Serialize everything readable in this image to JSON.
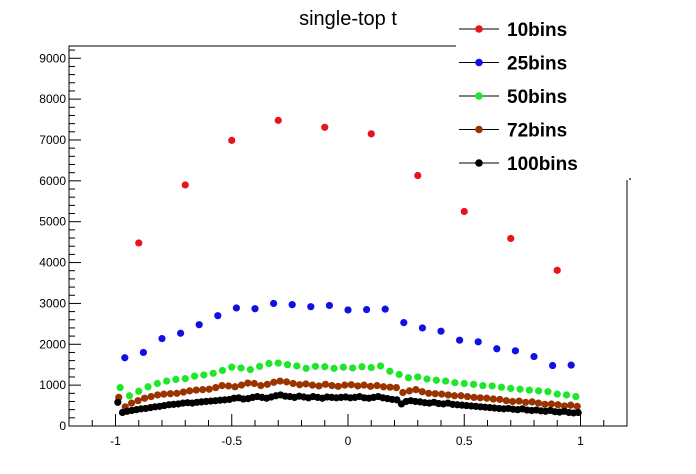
{
  "chart_data": {
    "type": "scatter",
    "title": "single-top t",
    "xlabel": "",
    "ylabel": "",
    "xlim": [
      -1.2,
      1.2
    ],
    "ylim": [
      0,
      9300
    ],
    "x_ticks": [
      -1,
      -0.5,
      0,
      0.5,
      1
    ],
    "y_ticks": [
      0,
      1000,
      2000,
      3000,
      4000,
      5000,
      6000,
      7000,
      8000,
      9000
    ],
    "grid": false,
    "legend_position": "top-right",
    "series": [
      {
        "name": "10bins",
        "color": "#e8141b",
        "x": [
          -0.9,
          -0.7,
          -0.5,
          -0.3,
          -0.1,
          0.1,
          0.3,
          0.5,
          0.7,
          0.9
        ],
        "y": [
          4480,
          5900,
          6990,
          7480,
          7310,
          7150,
          6130,
          5250,
          4590,
          3810
        ]
      },
      {
        "name": "25bins",
        "color": "#1010e6",
        "x": [
          -0.96,
          -0.88,
          -0.8,
          -0.72,
          -0.64,
          -0.56,
          -0.48,
          -0.4,
          -0.32,
          -0.24,
          -0.16,
          -0.08,
          0.0,
          0.08,
          0.16,
          0.24,
          0.32,
          0.4,
          0.48,
          0.56,
          0.64,
          0.72,
          0.8,
          0.88,
          0.96
        ],
        "y": [
          1670,
          1800,
          2140,
          2270,
          2480,
          2700,
          2890,
          2870,
          3000,
          2970,
          2920,
          2950,
          2840,
          2850,
          2860,
          2530,
          2400,
          2320,
          2100,
          2060,
          1890,
          1840,
          1700,
          1480,
          1490
        ]
      },
      {
        "name": "50bins",
        "color": "#1ee62a",
        "x": [
          -0.98,
          -0.94,
          -0.9,
          -0.86,
          -0.82,
          -0.78,
          -0.74,
          -0.7,
          -0.66,
          -0.62,
          -0.58,
          -0.54,
          -0.5,
          -0.46,
          -0.42,
          -0.38,
          -0.34,
          -0.3,
          -0.26,
          -0.22,
          -0.18,
          -0.14,
          -0.1,
          -0.06,
          -0.02,
          0.02,
          0.06,
          0.1,
          0.14,
          0.18,
          0.22,
          0.26,
          0.3,
          0.34,
          0.38,
          0.42,
          0.46,
          0.5,
          0.54,
          0.58,
          0.62,
          0.66,
          0.7,
          0.74,
          0.78,
          0.82,
          0.86,
          0.9,
          0.94,
          0.98
        ],
        "y": [
          940,
          740,
          850,
          960,
          1040,
          1100,
          1140,
          1160,
          1220,
          1250,
          1290,
          1360,
          1440,
          1420,
          1380,
          1460,
          1530,
          1540,
          1500,
          1470,
          1410,
          1460,
          1450,
          1410,
          1440,
          1420,
          1450,
          1430,
          1470,
          1340,
          1260,
          1180,
          1200,
          1150,
          1120,
          1100,
          1060,
          1040,
          1020,
          990,
          980,
          950,
          920,
          900,
          880,
          860,
          840,
          780,
          760,
          720
        ]
      },
      {
        "name": "72bins",
        "color": "#993300",
        "x": [
          -0.986,
          -0.958,
          -0.931,
          -0.903,
          -0.875,
          -0.847,
          -0.819,
          -0.792,
          -0.764,
          -0.736,
          -0.708,
          -0.681,
          -0.653,
          -0.625,
          -0.597,
          -0.569,
          -0.542,
          -0.514,
          -0.486,
          -0.458,
          -0.431,
          -0.403,
          -0.375,
          -0.347,
          -0.319,
          -0.292,
          -0.264,
          -0.236,
          -0.208,
          -0.181,
          -0.153,
          -0.125,
          -0.097,
          -0.069,
          -0.042,
          -0.014,
          0.014,
          0.042,
          0.069,
          0.097,
          0.125,
          0.153,
          0.181,
          0.208,
          0.236,
          0.264,
          0.292,
          0.319,
          0.347,
          0.375,
          0.403,
          0.431,
          0.458,
          0.486,
          0.514,
          0.542,
          0.569,
          0.597,
          0.625,
          0.653,
          0.681,
          0.708,
          0.736,
          0.764,
          0.792,
          0.819,
          0.847,
          0.875,
          0.903,
          0.931,
          0.958,
          0.986
        ],
        "y": [
          700,
          470,
          560,
          620,
          680,
          720,
          760,
          780,
          790,
          800,
          830,
          860,
          880,
          890,
          900,
          940,
          990,
          980,
          960,
          1000,
          1050,
          1040,
          990,
          1020,
          1070,
          1100,
          1080,
          1040,
          1010,
          1030,
          1000,
          980,
          1020,
          990,
          970,
          1000,
          1010,
          980,
          1000,
          970,
          990,
          960,
          950,
          940,
          820,
          860,
          890,
          840,
          800,
          790,
          780,
          760,
          740,
          740,
          720,
          700,
          690,
          680,
          660,
          650,
          620,
          600,
          610,
          580,
          590,
          560,
          530,
          540,
          520,
          490,
          510,
          480
        ]
      },
      {
        "name": "100bins",
        "color": "#000000",
        "x": [
          -0.99,
          -0.97,
          -0.95,
          -0.93,
          -0.91,
          -0.89,
          -0.87,
          -0.85,
          -0.83,
          -0.81,
          -0.79,
          -0.77,
          -0.75,
          -0.73,
          -0.71,
          -0.69,
          -0.67,
          -0.65,
          -0.63,
          -0.61,
          -0.59,
          -0.57,
          -0.55,
          -0.53,
          -0.51,
          -0.49,
          -0.47,
          -0.45,
          -0.43,
          -0.41,
          -0.39,
          -0.37,
          -0.35,
          -0.33,
          -0.31,
          -0.29,
          -0.27,
          -0.25,
          -0.23,
          -0.21,
          -0.19,
          -0.17,
          -0.15,
          -0.13,
          -0.11,
          -0.09,
          -0.07,
          -0.05,
          -0.03,
          -0.01,
          0.01,
          0.03,
          0.05,
          0.07,
          0.09,
          0.11,
          0.13,
          0.15,
          0.17,
          0.19,
          0.21,
          0.23,
          0.25,
          0.27,
          0.29,
          0.31,
          0.33,
          0.35,
          0.37,
          0.39,
          0.41,
          0.43,
          0.45,
          0.47,
          0.49,
          0.51,
          0.53,
          0.55,
          0.57,
          0.59,
          0.61,
          0.63,
          0.65,
          0.67,
          0.69,
          0.71,
          0.73,
          0.75,
          0.77,
          0.79,
          0.81,
          0.83,
          0.85,
          0.87,
          0.89,
          0.91,
          0.93,
          0.95,
          0.97,
          0.99
        ],
        "y": [
          580,
          330,
          360,
          380,
          400,
          420,
          430,
          450,
          470,
          480,
          500,
          520,
          530,
          540,
          560,
          570,
          560,
          580,
          590,
          600,
          610,
          620,
          630,
          640,
          650,
          680,
          690,
          660,
          670,
          700,
          720,
          700,
          680,
          710,
          740,
          760,
          730,
          720,
          700,
          730,
          710,
          690,
          720,
          700,
          680,
          710,
          700,
          690,
          700,
          710,
          690,
          700,
          720,
          690,
          680,
          700,
          720,
          690,
          670,
          650,
          640,
          540,
          600,
          620,
          600,
          590,
          570,
          560,
          580,
          550,
          540,
          560,
          530,
          520,
          510,
          500,
          490,
          480,
          470,
          460,
          450,
          440,
          430,
          420,
          430,
          410,
          400,
          420,
          390,
          380,
          390,
          370,
          360,
          380,
          350,
          340,
          360,
          330,
          320,
          330
        ]
      }
    ]
  }
}
